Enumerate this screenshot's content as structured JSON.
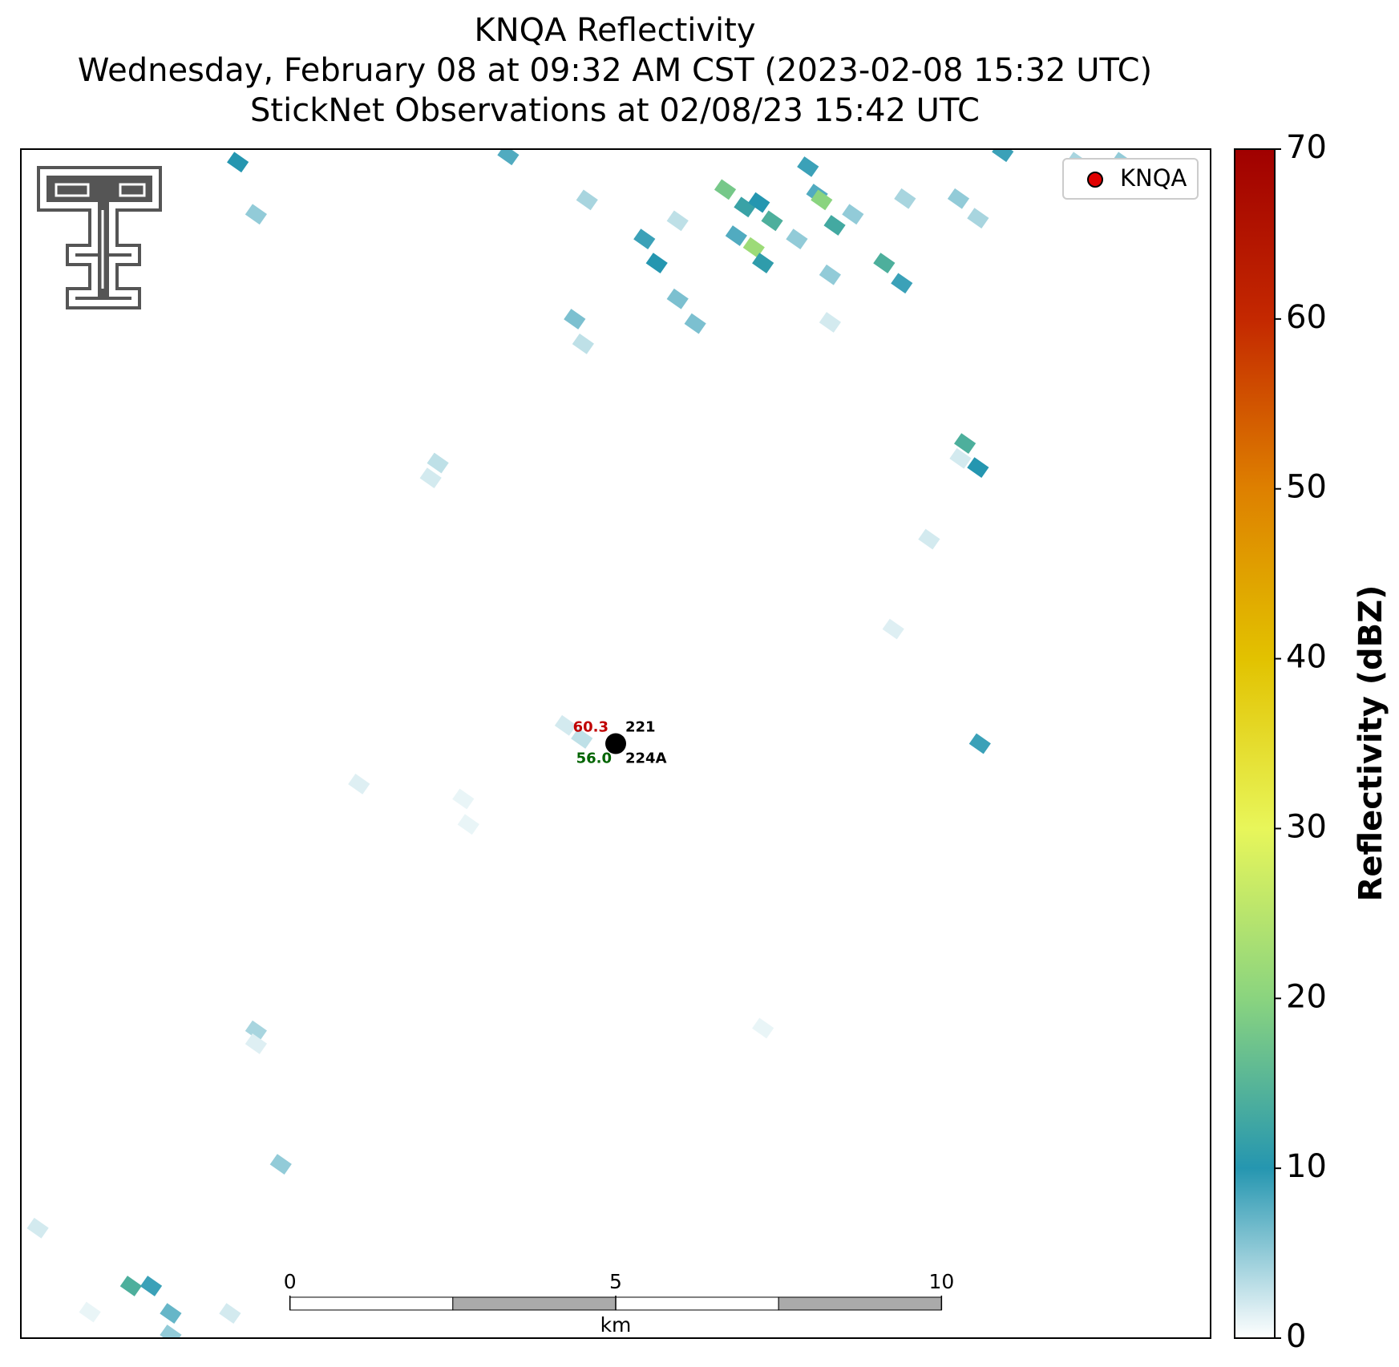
{
  "chart_data": {
    "type": "radar-map",
    "title": [
      "KNQA Reflectivity",
      "Wednesday, February 08 at 09:32 AM CST (2023-02-08 15:32 UTC)",
      "StickNet Observations at 02/08/23 15:42 UTC"
    ],
    "xlim": [
      -9.13,
      9.13
    ],
    "ylim": [
      -9.13,
      9.13
    ],
    "legend": {
      "label": "KNQA",
      "color": "#e00000",
      "corner": "upper right"
    },
    "colorbar": {
      "label": "Reflectivity (dBZ)",
      "lim": [
        0,
        70
      ],
      "ticks": [
        0,
        10,
        20,
        30,
        40,
        50,
        60,
        70
      ],
      "colors": [
        "#ffffff",
        "#2596b0",
        "#8ad47f",
        "#e8f65a",
        "#e2c200",
        "#de8000",
        "#c42800",
        "#a00000"
      ]
    },
    "scale_bar": {
      "ticks": [
        0,
        5,
        10
      ],
      "unit": "km"
    },
    "stations": [
      {
        "id": "221",
        "value": "60.3",
        "color": "#c00000"
      },
      {
        "id": "224A",
        "value": "56.0",
        "color": "#006400"
      }
    ],
    "echoes": {
      "x": [
        -5.8,
        -5.52,
        -1.65,
        -0.44,
        0.44,
        0.63,
        0.95,
        1.68,
        1.98,
        2.2,
        2.4,
        2.12,
        2.26,
        1.85,
        2.95,
        3.09,
        3.16,
        3.36,
        2.78,
        3.64,
        4.44,
        5.26,
        5.56,
        4.12,
        4.39,
        3.29,
        0.95,
        1.22,
        -0.63,
        -0.5,
        3.29,
        -2.73,
        -2.84,
        5.36,
        5.56,
        5.29,
        4.81,
        4.26,
        5.59,
        -0.77,
        -0.52,
        -3.94,
        -2.34,
        -2.26,
        -5.52,
        -5.52,
        -5.14,
        -8.87,
        -7.44,
        -7.13,
        -6.83,
        -5.92,
        -8.07,
        -6.83,
        2.26,
        7.08,
        7.77,
        5.94
      ],
      "y": [
        8.93,
        8.13,
        9.04,
        8.35,
        7.75,
        7.38,
        8.03,
        8.51,
        8.24,
        8.31,
        8.03,
        7.62,
        7.38,
        7.8,
        8.86,
        8.44,
        8.35,
        7.96,
        7.75,
        8.13,
        8.37,
        8.37,
        8.07,
        7.38,
        7.07,
        7.2,
        6.83,
        6.45,
        6.52,
        6.14,
        6.47,
        4.31,
        4.08,
        4.61,
        4.24,
        4.38,
        3.14,
        1.76,
        0.0,
        0.28,
        0.08,
        -0.62,
        -0.85,
        -1.24,
        -4.41,
        -4.61,
        -6.46,
        -7.44,
        -8.33,
        -8.33,
        -8.75,
        -8.75,
        -8.73,
        -9.08,
        -4.37,
        8.93,
        8.93,
        9.09
      ],
      "dbz": [
        10,
        5,
        8,
        4,
        9,
        10,
        3,
        18,
        12,
        10,
        14,
        22,
        11,
        8,
        9,
        8,
        20,
        13,
        5,
        5,
        4,
        5,
        4,
        14,
        9,
        5,
        6,
        6,
        6,
        3,
        2,
        3,
        2,
        14,
        10,
        2,
        2,
        1.5,
        9,
        2,
        3,
        1.5,
        1,
        1,
        4,
        1.5,
        5,
        2,
        14,
        9,
        7,
        2,
        1,
        5,
        1,
        4,
        5,
        9
      ]
    }
  }
}
